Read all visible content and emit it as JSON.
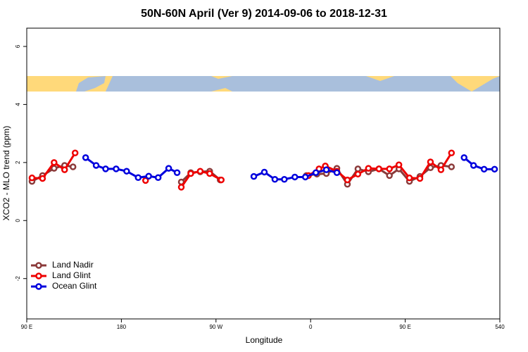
{
  "chart_data": {
    "type": "line",
    "title": "50N-60N April (Ver 9)   2014-09-06 to 2018-12-31",
    "x_label": "Longitude",
    "y_label": "XCO2 - MLO trend (ppm)",
    "xlim": [
      90,
      540
    ],
    "ylim": [
      -3.39,
      6.63
    ],
    "xticks": [
      {
        "value": 90,
        "label": "90 E"
      },
      180,
      {
        "value": 270,
        "label": "90 W"
      },
      {
        "value": 360,
        "label": "0"
      },
      {
        "value": 450,
        "label": "90 E"
      },
      540
    ],
    "yticks": [
      6,
      4,
      2,
      0,
      -2
    ],
    "legend": "bottom-left",
    "series": [
      {
        "name": "Land Nadir",
        "color": "#8b3a3a",
        "x": [
          95,
          105,
          116,
          126,
          134,
          237,
          246,
          255,
          264,
          274,
          356,
          366,
          375,
          385,
          395,
          405,
          415,
          425,
          435,
          444,
          454,
          464,
          474,
          484,
          494
        ],
        "values": [
          1.35,
          1.55,
          1.8,
          1.9,
          1.85,
          1.33,
          1.65,
          1.68,
          1.7,
          1.4,
          1.55,
          1.6,
          1.62,
          1.8,
          1.25,
          1.78,
          1.68,
          1.78,
          1.55,
          1.78,
          1.35,
          1.52,
          1.82,
          1.9,
          1.85
        ]
      },
      {
        "name": "Land Glint",
        "color": "#ee0000",
        "x": [
          95,
          105,
          116,
          126,
          136,
          203,
          237,
          246,
          255,
          264,
          275,
          358,
          368,
          374,
          385,
          395,
          405,
          415,
          425,
          435,
          444,
          454,
          464,
          474,
          484,
          494
        ],
        "values": [
          1.47,
          1.45,
          2.0,
          1.75,
          2.33,
          1.38,
          1.15,
          1.62,
          1.7,
          1.62,
          1.4,
          1.55,
          1.78,
          1.88,
          1.7,
          1.4,
          1.6,
          1.8,
          1.78,
          1.78,
          1.92,
          1.47,
          1.45,
          2.02,
          1.75,
          2.33
        ]
      },
      {
        "name": "Ocean Glint",
        "color": "#0000dd",
        "x": [
          146,
          156,
          165,
          175,
          185,
          196,
          206,
          215,
          225,
          233,
          306,
          316,
          326,
          335,
          345,
          355,
          365,
          375,
          385,
          506,
          515,
          525,
          535
        ],
        "values": [
          2.17,
          1.9,
          1.78,
          1.78,
          1.7,
          1.48,
          1.53,
          1.48,
          1.8,
          1.65,
          1.52,
          1.67,
          1.42,
          1.42,
          1.5,
          1.5,
          1.65,
          1.75,
          1.65,
          2.17,
          1.9,
          1.77,
          1.77
        ]
      }
    ]
  }
}
